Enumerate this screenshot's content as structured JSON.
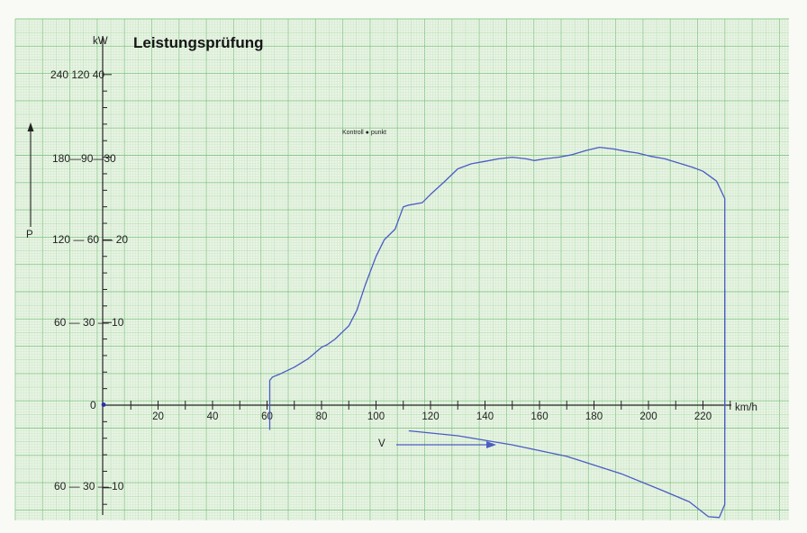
{
  "chart_data": {
    "type": "line",
    "title": "Leistungsprüfung",
    "y_unit": "kW",
    "x_unit": "km/h",
    "power_symbol": "P",
    "speed_symbol": "V",
    "annotation": "Kontroll ● punkt",
    "x_ticks": [
      "20",
      "40",
      "60",
      "80",
      "100",
      "120",
      "140",
      "160",
      "180",
      "200",
      "220"
    ],
    "y_ticks": [
      {
        "value": 40,
        "label": "240 120 40"
      },
      {
        "value": 30,
        "label": "180—90—30"
      },
      {
        "value": 20,
        "label": "120 — 60 — 20"
      },
      {
        "value": 10,
        "label": "60 — 30 — 10"
      },
      {
        "value": 0,
        "label": "0"
      },
      {
        "value": -10,
        "label": "60 — 30 — 10"
      }
    ],
    "xlim": [
      0,
      240
    ],
    "ylim": [
      -13,
      42
    ],
    "grid": true,
    "series": [
      {
        "name": "P",
        "color": "#4a5cc4",
        "x": [
          61,
          61,
          62,
          65,
          70,
          75,
          80,
          82,
          85,
          90,
          93,
          96,
          100,
          103,
          107,
          110,
          112,
          117,
          120,
          125,
          130,
          135,
          140,
          145,
          150,
          155,
          158,
          162,
          167,
          172,
          177,
          182,
          187,
          192,
          196,
          201,
          206,
          211,
          216,
          220,
          225,
          228,
          228,
          228
        ],
        "y": [
          -3,
          3,
          3.4,
          3.8,
          4.6,
          5.6,
          7,
          7.3,
          8,
          9.6,
          11.5,
          14.5,
          18,
          20,
          21.3,
          24,
          24.2,
          24.5,
          25.5,
          27,
          28.6,
          29.2,
          29.5,
          29.8,
          30,
          29.8,
          29.6,
          29.8,
          30,
          30.3,
          30.8,
          31.2,
          31,
          30.7,
          30.5,
          30.1,
          29.8,
          29.3,
          28.8,
          28.3,
          27.1,
          25,
          10,
          -3
        ]
      },
      {
        "name": "V",
        "color": "#4a5cc4",
        "x": [
          112,
          130,
          150,
          170,
          190,
          205,
          215,
          222,
          226,
          228,
          228
        ],
        "y": [
          -3.1,
          -3.7,
          -4.8,
          -6.2,
          -8.3,
          -10.3,
          -11.7,
          -13.5,
          -13.6,
          -12,
          14
        ]
      }
    ]
  }
}
